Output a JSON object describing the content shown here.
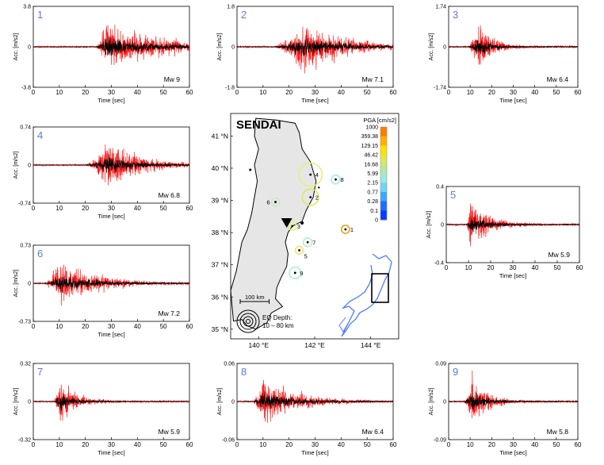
{
  "colors": {
    "raw_trace": "#ff1a1a",
    "filtered_trace": "#000000",
    "panel_number": "#5b7bd5",
    "land": "#e6e6e6",
    "inset_japan": "#4d7cff"
  },
  "chart_data": [
    {
      "type": "line",
      "panel": "1",
      "magnitude": "Mw 9",
      "ylim": [
        -3.8,
        3.8
      ],
      "yticks": [
        "3.8",
        "0",
        "-3.8"
      ],
      "xlim": [
        0,
        60
      ],
      "xticks": [
        "0",
        "10",
        "20",
        "30",
        "40",
        "50",
        "60"
      ],
      "xlabel": "Time [sec]",
      "ylabel": "Acc. [m/s2]",
      "onset_s": 24,
      "peak_s": 28,
      "decay_s": 34
    },
    {
      "type": "line",
      "panel": "2",
      "magnitude": "Mw 7.1",
      "ylim": [
        -1.8,
        1.8
      ],
      "yticks": [
        "1.8",
        "0",
        "-1.8"
      ],
      "xlim": [
        0,
        60
      ],
      "xticks": [
        "0",
        "10",
        "20",
        "30",
        "40",
        "50",
        "60"
      ],
      "xlabel": "Time [sec]",
      "ylabel": "Acc. [m/s2]",
      "onset_s": 14,
      "peak_s": 25,
      "decay_s": 28
    },
    {
      "type": "line",
      "panel": "3",
      "magnitude": "Mw 6.4",
      "ylim": [
        -1.74,
        1.74
      ],
      "yticks": [
        "1.74",
        "0",
        "-1.74"
      ],
      "xlim": [
        0,
        60
      ],
      "xticks": [
        "0",
        "10",
        "20",
        "30",
        "40",
        "50",
        "60"
      ],
      "xlabel": "Time [sec]",
      "ylabel": "Acc. [m/s2]",
      "onset_s": 9,
      "peak_s": 14,
      "decay_s": 10
    },
    {
      "type": "line",
      "panel": "4",
      "magnitude": "Mw 6.8",
      "ylim": [
        -0.74,
        0.74
      ],
      "yticks": [
        "0.74",
        "0",
        "-0.74"
      ],
      "xlim": [
        0,
        60
      ],
      "xticks": [
        "0",
        "10",
        "20",
        "30",
        "40",
        "50",
        "60"
      ],
      "xlabel": "Time [sec]",
      "ylabel": "Acc. [m/s2]",
      "onset_s": 20,
      "peak_s": 29,
      "decay_s": 20
    },
    {
      "type": "line",
      "panel": "5",
      "magnitude": "Mw 5.9",
      "ylim": [
        -0.4,
        0.4
      ],
      "yticks": [
        "0.4",
        "0",
        "-0.4"
      ],
      "xlim": [
        0,
        60
      ],
      "xticks": [
        "0",
        "10",
        "20",
        "30",
        "40",
        "50",
        "60"
      ],
      "xlabel": "Time [sec]",
      "ylabel": "Acc. [m/s2]",
      "onset_s": 9,
      "peak_s": 11,
      "decay_s": 14
    },
    {
      "type": "line",
      "panel": "6",
      "magnitude": "Mw 7.2",
      "ylim": [
        -0.73,
        0.73
      ],
      "yticks": [
        "0.73",
        "0",
        "-0.73"
      ],
      "xlim": [
        0,
        60
      ],
      "xticks": [
        "0",
        "10",
        "20",
        "30",
        "40",
        "50",
        "60"
      ],
      "xlabel": "Time [sec]",
      "ylabel": "Acc. [m/s2]",
      "onset_s": 4,
      "peak_s": 11,
      "decay_s": 22
    },
    {
      "type": "line",
      "panel": "7",
      "magnitude": "Mw 5.9",
      "ylim": [
        -0.32,
        0.32
      ],
      "yticks": [
        "0.32",
        "0",
        "-0.32"
      ],
      "xlim": [
        0,
        60
      ],
      "xticks": [
        "0",
        "10",
        "20",
        "30",
        "40",
        "50",
        "60"
      ],
      "xlabel": "Time [sec]",
      "ylabel": "Acc. [m/s2]",
      "onset_s": 8,
      "peak_s": 10,
      "decay_s": 10
    },
    {
      "type": "line",
      "panel": "8",
      "magnitude": "Mw 6.4",
      "ylim": [
        -0.06,
        0.06
      ],
      "yticks": [
        "0.06",
        "0",
        "-0.06"
      ],
      "xlim": [
        0,
        60
      ],
      "xticks": [
        "0",
        "10",
        "20",
        "30",
        "40",
        "50",
        "60"
      ],
      "xlabel": "Time [sec]",
      "ylabel": "Acc. [m/s2]",
      "onset_s": 6,
      "peak_s": 10,
      "decay_s": 22
    },
    {
      "type": "line",
      "panel": "9",
      "magnitude": "Mw 5.8",
      "ylim": [
        -0.09,
        0.09
      ],
      "yticks": [
        "0.09",
        "0",
        "-0.09"
      ],
      "xlim": [
        0,
        60
      ],
      "xticks": [
        "0",
        "10",
        "20",
        "30",
        "40",
        "50",
        "60"
      ],
      "xlabel": "Time [sec]",
      "ylabel": "Acc. [m/s2]",
      "onset_s": 7,
      "peak_s": 11,
      "decay_s": 12
    }
  ],
  "map": {
    "title": "SENDAI",
    "lat_ticks": [
      {
        "lat": 41,
        "label": "41 °N"
      },
      {
        "lat": 40,
        "label": "40 °N"
      },
      {
        "lat": 39,
        "label": "39 °N"
      },
      {
        "lat": 38,
        "label": "38 °N"
      },
      {
        "lat": 37,
        "label": "37 °N"
      },
      {
        "lat": 36,
        "label": "36 °N"
      },
      {
        "lat": 35,
        "label": "35 °N"
      }
    ],
    "lon_ticks": [
      {
        "lon": 140,
        "label": "140 °E"
      },
      {
        "lon": 142,
        "label": "142 °E"
      },
      {
        "lon": 144,
        "label": "144 °E"
      }
    ],
    "lon_range": [
      139,
      145
    ],
    "lat_range": [
      34.7,
      41.7
    ],
    "legend": {
      "title": "PGA [cm/s2]",
      "labels": [
        "1000",
        "359.38",
        "129.15",
        "46.42",
        "16.68",
        "5.99",
        "2.15",
        "0.77",
        "0.28",
        "0.1",
        "0"
      ],
      "gradient": [
        "#ff7f00",
        "#ffb000",
        "#ffe000",
        "#dde855",
        "#b8e8a0",
        "#9ee8d8",
        "#6fd5f5",
        "#3aa8ff",
        "#1f6dff",
        "#0a3cff"
      ]
    },
    "scale_bar": "100 km",
    "depth_label_1": "EQ Depth:",
    "depth_label_2": "10 – 80 km",
    "stations": [
      {
        "id": "1",
        "lon": 143.1,
        "lat": 38.1,
        "pga_color": "#e8a317",
        "radius_km": 14
      },
      {
        "id": "2",
        "lon": 141.85,
        "lat": 39.1,
        "pga_color": "#dcea5c",
        "radius_km": 28
      },
      {
        "id": "3",
        "lon": 141.2,
        "lat": 38.2,
        "pga_color": "#e8ee70",
        "radius_km": 8
      },
      {
        "id": "4",
        "lon": 141.85,
        "lat": 39.8,
        "pga_color": "#e4ef80",
        "radius_km": 40
      },
      {
        "id": "5",
        "lon": 141.45,
        "lat": 37.45,
        "pga_color": "#f0e27a",
        "radius_km": 12
      },
      {
        "id": "6",
        "lon": 140.6,
        "lat": 38.95,
        "pga_color": "#c6e9c0",
        "radius_km": 4
      },
      {
        "id": "7",
        "lon": 141.75,
        "lat": 37.7,
        "pga_color": "#b9ecd0",
        "radius_km": 15
      },
      {
        "id": "8",
        "lon": 142.75,
        "lat": 39.65,
        "pga_color": "#a6ecea",
        "radius_km": 15
      },
      {
        "id": "9",
        "lon": 141.3,
        "lat": 36.75,
        "pga_color": "#b4ecdc",
        "radius_km": 20
      }
    ]
  }
}
